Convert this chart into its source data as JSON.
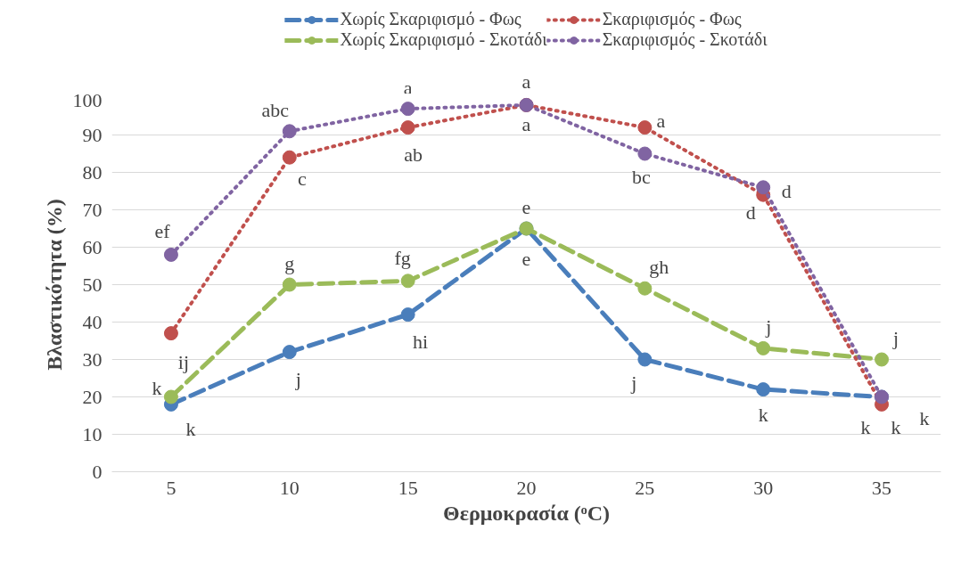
{
  "chart_data": {
    "type": "line",
    "xlabel": "Θερμοκρασία (ᵒC)",
    "ylabel": "Βλαστικότητα (%)",
    "categories": [
      "5",
      "10",
      "15",
      "20",
      "25",
      "30",
      "35"
    ],
    "ylim": [
      0,
      100
    ],
    "yticks": [
      0,
      10,
      20,
      30,
      40,
      50,
      60,
      70,
      80,
      90,
      100
    ],
    "grid": "y",
    "legend": "top",
    "marker": "circle",
    "series": [
      {
        "name": "Χωρίς Σκαριφισμό - Φως",
        "color": "#4a7ebb",
        "line_style": "dashed",
        "values": [
          18,
          32,
          42,
          65,
          30,
          22,
          20
        ]
      },
      {
        "name": "Χωρίς Σκαριφισμό - Σκοτάδι",
        "color": "#9bbb59",
        "line_style": "dashed",
        "values": [
          20,
          50,
          51,
          65,
          49,
          33,
          30
        ]
      },
      {
        "name": "Σκαριφισμός - Φως",
        "color": "#c0504d",
        "line_style": "dotted",
        "values": [
          37,
          84,
          92,
          98,
          92,
          74,
          18
        ]
      },
      {
        "name": "Σκαριφισμός - Σκοτάδι",
        "color": "#8064a2",
        "line_style": "dotted",
        "values": [
          58,
          91,
          97,
          98,
          85,
          76,
          20
        ]
      }
    ],
    "annotations": [
      {
        "text": "k",
        "x": "5",
        "y": 18
      },
      {
        "text": "k",
        "x": "5",
        "y": 20
      },
      {
        "text": "ij",
        "x": "5",
        "y": 37
      },
      {
        "text": "ef",
        "x": "5",
        "y": 58
      },
      {
        "text": "j",
        "x": "10",
        "y": 32
      },
      {
        "text": "g",
        "x": "10",
        "y": 50
      },
      {
        "text": "c",
        "x": "10",
        "y": 84
      },
      {
        "text": "abc",
        "x": "10",
        "y": 91
      },
      {
        "text": "hi",
        "x": "15",
        "y": 42
      },
      {
        "text": "fg",
        "x": "15",
        "y": 51
      },
      {
        "text": "ab",
        "x": "15",
        "y": 92
      },
      {
        "text": "a",
        "x": "15",
        "y": 97
      },
      {
        "text": "e",
        "x": "20",
        "y": 65
      },
      {
        "text": "e",
        "x": "20",
        "y": 65
      },
      {
        "text": "a",
        "x": "20",
        "y": 98
      },
      {
        "text": "a",
        "x": "20",
        "y": 98
      },
      {
        "text": "j",
        "x": "25",
        "y": 30
      },
      {
        "text": "gh",
        "x": "25",
        "y": 49
      },
      {
        "text": "a",
        "x": "25",
        "y": 92
      },
      {
        "text": "bc",
        "x": "25",
        "y": 85
      },
      {
        "text": "k",
        "x": "30",
        "y": 22
      },
      {
        "text": "j",
        "x": "30",
        "y": 33
      },
      {
        "text": "d",
        "x": "30",
        "y": 74
      },
      {
        "text": "d",
        "x": "30",
        "y": 76
      },
      {
        "text": "j",
        "x": "35",
        "y": 30
      },
      {
        "text": "k",
        "x": "35",
        "y": 20
      },
      {
        "text": "k",
        "x": "35",
        "y": 18
      },
      {
        "text": "k",
        "x": "35",
        "y": 20
      }
    ]
  }
}
